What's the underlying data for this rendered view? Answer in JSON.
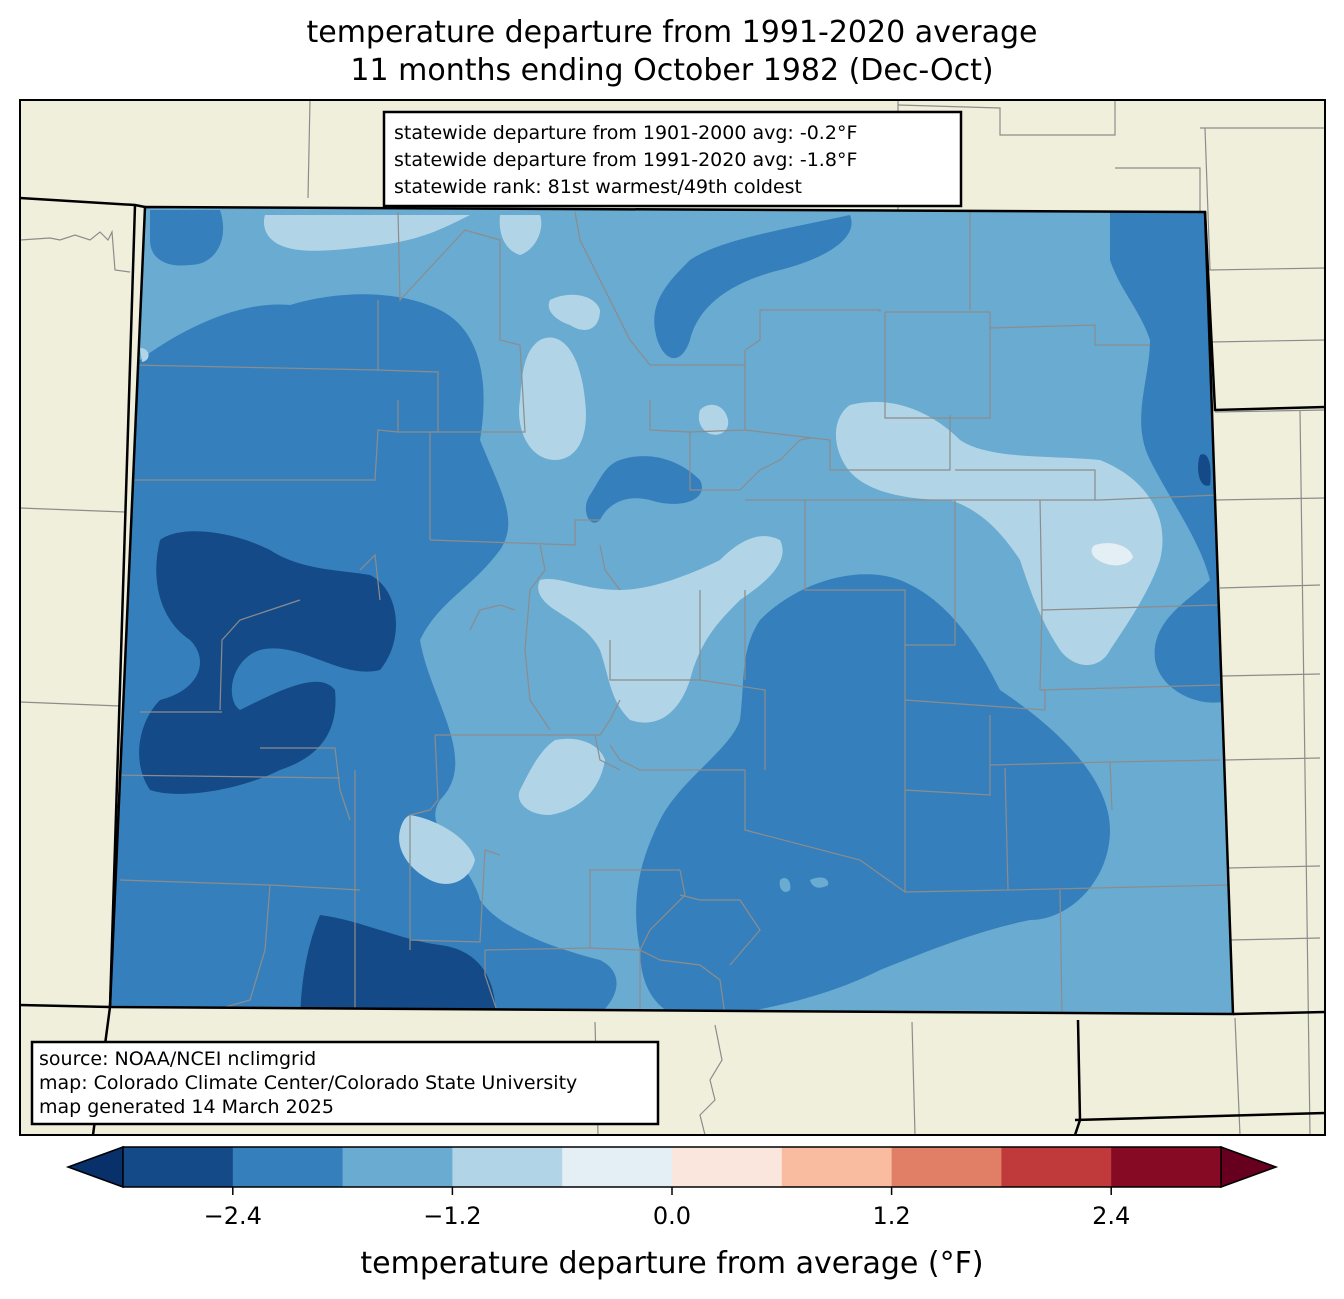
{
  "title": {
    "line1": "temperature departure from 1991-2020 average",
    "line2": "11 months ending October 1982 (Dec-Oct)"
  },
  "stats": {
    "line1": "statewide departure from 1901-2000 avg: -0.2°F",
    "line2": "statewide departure from 1991-2020 avg: -1.8°F",
    "line3": "statewide rank: 81st warmest/49th coldest"
  },
  "source": {
    "line1": "source: NOAA/NCEI nclimgrid",
    "line2": "map: Colorado Climate Center/Colorado State University",
    "line3": "map generated 14 March 2025"
  },
  "colorbar": {
    "label": "temperature departure from average (°F)",
    "ticks": [
      {
        "value": -2.4,
        "text": "−2.4"
      },
      {
        "value": -1.2,
        "text": "−1.2"
      },
      {
        "value": 0.0,
        "text": "0.0"
      },
      {
        "value": 1.2,
        "text": "1.2"
      },
      {
        "value": 2.4,
        "text": "2.4"
      }
    ],
    "range": [
      -3.0,
      3.0
    ],
    "step": 0.6,
    "colors": [
      "#144a87",
      "#3580bc",
      "#6aabd1",
      "#b1d5e7",
      "#e4eef5",
      "#fae6dc",
      "#f9bca0",
      "#e17f66",
      "#c13a3b",
      "#870a24"
    ],
    "extend_low_color": "#08306b",
    "extend_high_color": "#67001f"
  },
  "map": {
    "land_color": "#f0efdc",
    "state": "Colorado"
  }
}
